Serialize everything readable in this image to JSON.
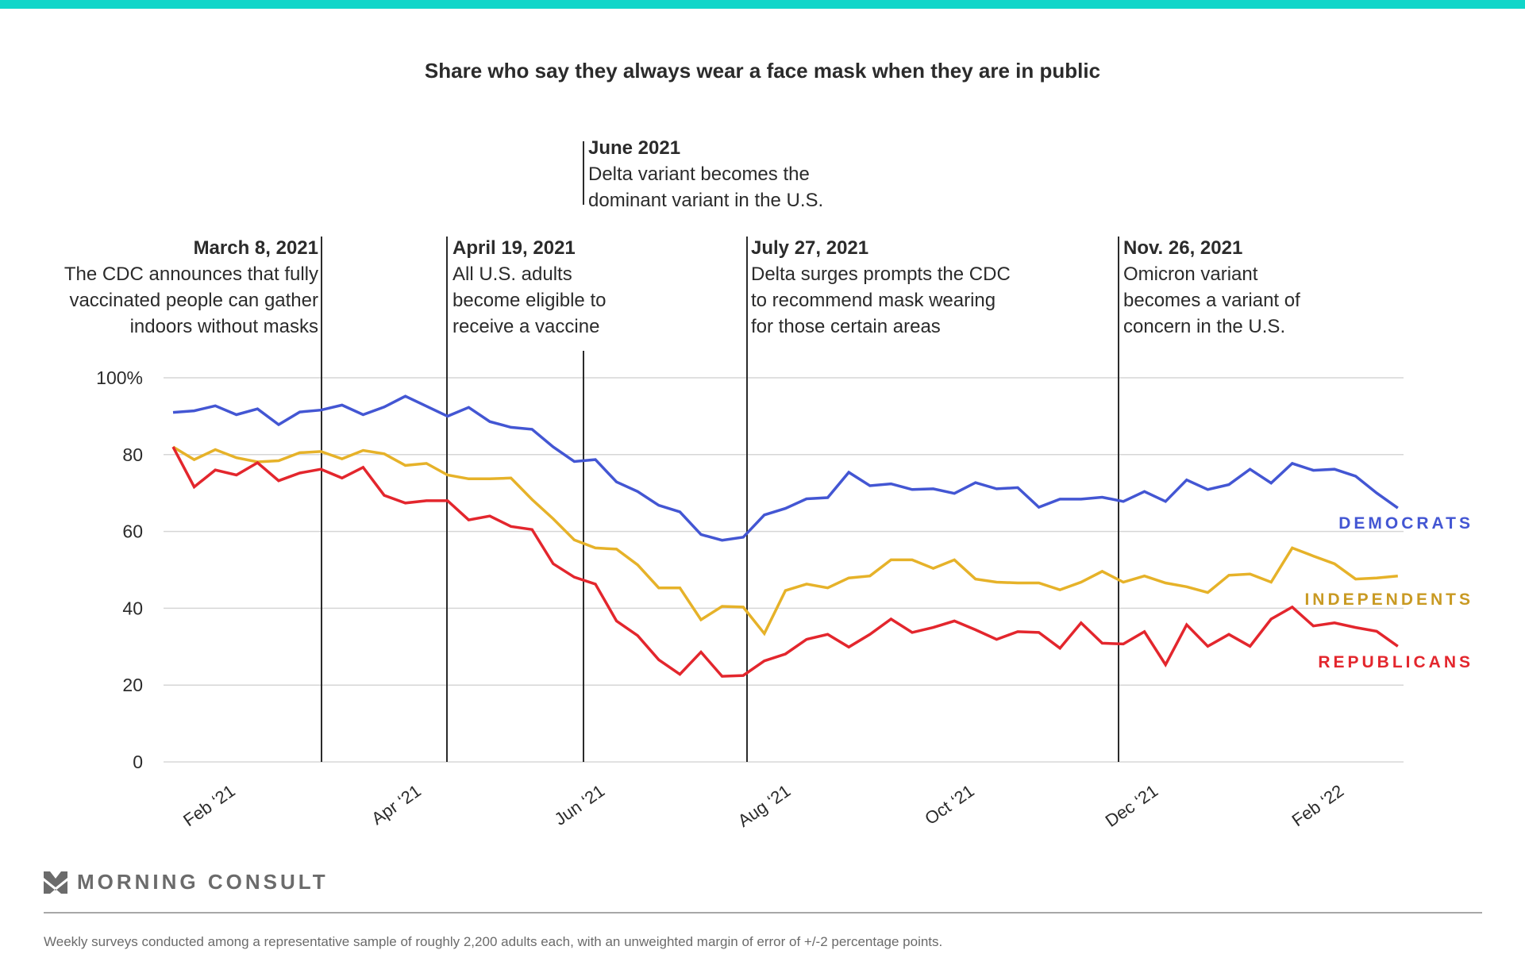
{
  "header": {
    "accent_color": "#10d6c9"
  },
  "chart_data": {
    "type": "line",
    "title": "Share who say they always wear a face mask when they are in public",
    "xlabel": "",
    "ylabel": "",
    "ylim": [
      0,
      100
    ],
    "y_ticks": [
      0,
      20,
      40,
      60,
      80,
      100
    ],
    "y_tick_labels": [
      "0",
      "20",
      "40",
      "60",
      "80",
      "100%"
    ],
    "x_tick_labels": [
      "Feb ‘21",
      "Apr ‘21",
      "Jun ‘21",
      "Aug ‘21",
      "Oct ‘21",
      "Dec ‘21",
      "Feb ‘22"
    ],
    "x_tick_week_index": [
      3,
      11.8,
      20.5,
      29.3,
      38,
      46.7,
      55.5
    ],
    "grid": true,
    "legend": "inline-right",
    "x_description": "Weekly surveys, Jan 2021 – Feb 2022 (59 weeks)",
    "series": [
      {
        "name": "DEMOCRATS",
        "color": "#4356d3",
        "values": [
          91,
          91.4,
          92.7,
          90.4,
          91.9,
          87.8,
          91.1,
          91.6,
          92.9,
          90.4,
          92.4,
          95.2,
          92.6,
          90,
          92.3,
          88.6,
          87.1,
          86.6,
          82,
          78.2,
          78.7,
          72.9,
          70.4,
          66.8,
          65.1,
          59.2,
          57.7,
          58.5,
          64.3,
          66,
          68.5,
          68.8,
          75.4,
          71.9,
          72.4,
          70.9,
          71.1,
          69.9,
          72.7,
          71.1,
          71.4,
          66.3,
          68.4,
          68.4,
          68.9,
          67.8,
          70.4,
          67.8,
          73.4,
          70.9,
          72.2,
          76.2,
          72.6,
          77.7,
          75.9,
          76.2,
          74.4,
          70,
          66.1
        ]
      },
      {
        "name": "INDEPENDENTS",
        "color": "#e6b229",
        "values": [
          82,
          78.7,
          81.3,
          79.2,
          78.1,
          78.4,
          80.5,
          80.8,
          78.9,
          81.1,
          80.2,
          77.2,
          77.7,
          74.7,
          73.7,
          73.7,
          73.9,
          68.3,
          63.3,
          57.8,
          55.7,
          55.4,
          51.3,
          45.3,
          45.3,
          37,
          40.5,
          40.3,
          33.4,
          44.6,
          46.3,
          45.3,
          47.9,
          48.4,
          52.6,
          52.6,
          50.4,
          52.6,
          47.6,
          46.8,
          46.6,
          46.6,
          44.8,
          46.8,
          49.6,
          46.8,
          48.4,
          46.6,
          45.6,
          44.1,
          48.6,
          48.9,
          46.8,
          55.7,
          53.6,
          51.6,
          47.6,
          47.9,
          48.4
        ]
      },
      {
        "name": "REPUBLICANS",
        "color": "#e3262d",
        "values": [
          82,
          71.6,
          76,
          74.7,
          77.9,
          73.2,
          75.2,
          76.2,
          73.9,
          76.7,
          69.4,
          67.4,
          68,
          68,
          63,
          64,
          61.3,
          60.5,
          51.6,
          48.1,
          46.3,
          36.7,
          32.9,
          26.6,
          22.8,
          28.6,
          22.3,
          22.5,
          26.3,
          28.1,
          31.9,
          33.2,
          29.9,
          33.2,
          37.2,
          33.7,
          35,
          36.7,
          34.4,
          31.9,
          33.9,
          33.7,
          29.6,
          36.2,
          30.9,
          30.7,
          33.9,
          25.3,
          35.7,
          30.1,
          33.2,
          30.1,
          37.2,
          40.3,
          35.4,
          36.2,
          35,
          34,
          30.1
        ]
      }
    ],
    "annotations": [
      {
        "week": 7,
        "date": "March 8, 2021",
        "lines": [
          "The CDC announces that fully",
          "vaccinated people can gather",
          "indoors without masks"
        ]
      },
      {
        "week": 13,
        "date": "April 19, 2021",
        "lines": [
          "All U.S. adults",
          "become eligible to",
          "receive a vaccine"
        ]
      },
      {
        "week": 19.5,
        "date": "June 2021",
        "lines": [
          "Delta variant becomes the",
          "dominant variant in the U.S."
        ]
      },
      {
        "week": 27.3,
        "date": "July 27, 2021",
        "lines": [
          "Delta surges prompts the CDC",
          "to recommend mask wearing",
          "for those certain areas"
        ]
      },
      {
        "week": 45,
        "date": "Nov. 26, 2021",
        "lines": [
          "Omicron variant",
          "becomes a variant of",
          "concern in the U.S."
        ]
      }
    ]
  },
  "footer": {
    "brand": "MORNING CONSULT",
    "note": "Weekly surveys conducted among a representative sample of roughly 2,200 adults each, with an unweighted margin of error of +/-2 percentage points."
  }
}
